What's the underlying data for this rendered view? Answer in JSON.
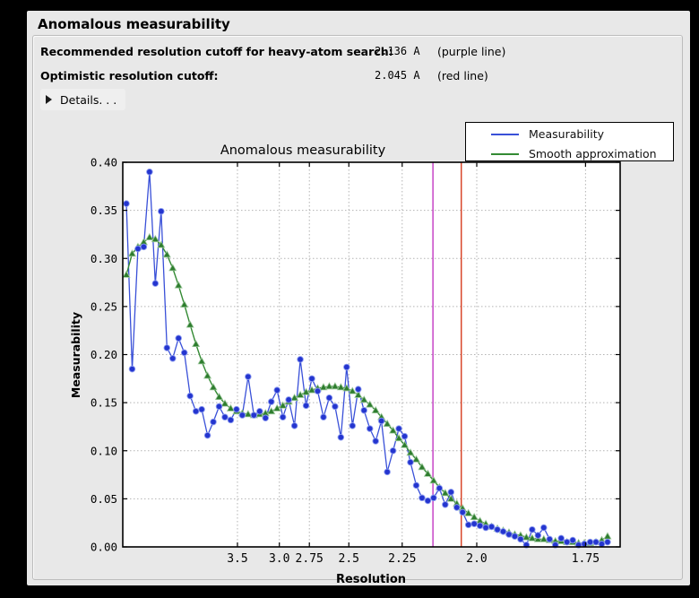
{
  "section": {
    "title": "Anomalous measurability"
  },
  "info_rows": [
    {
      "label": "Recommended resolution cutoff for heavy-atom search:",
      "value": "2.136 A",
      "note": "(purple line)"
    },
    {
      "label": "Optimistic resolution cutoff:",
      "value": "2.045 A",
      "note": "(red line)"
    }
  ],
  "details": {
    "label": "Details. . ."
  },
  "colors": {
    "window_bg": "#e8e8e8",
    "plot_bg": "#ffffff",
    "grid": "#b3b3b3",
    "axis": "#000000",
    "blue_line": "#3950d8",
    "blue_marker": "#2435cf",
    "blue_marker_edge": "#8d9cf0",
    "green_line": "#338a33",
    "green_marker": "#2e7d2e",
    "green_marker_edge": "#9cc79c",
    "purple_vline": "#c238c2",
    "red_vline": "#d63c1e"
  },
  "chart_data": {
    "type": "line",
    "title": "Anomalous measurability",
    "xlabel": "Resolution",
    "ylabel": "Measurability",
    "grid": true,
    "legend_position": "upper-right",
    "ylim": [
      0.0,
      0.4
    ],
    "x_axis_scale": "linear in 1/d^2 (resolution in Angstrom, decreasing d to the right)",
    "x_domain_s2": [
      0.00095,
      0.35088
    ],
    "s2_start": 0.003468,
    "s2_step": 0.004079,
    "x_ticks": [
      {
        "d": 3.5,
        "label": "3.5"
      },
      {
        "d": 3.0,
        "label": "3.0"
      },
      {
        "d": 2.75,
        "label": "2.75"
      },
      {
        "d": 2.5,
        "label": "2.5"
      },
      {
        "d": 2.25,
        "label": "2.25"
      },
      {
        "d": 2.0,
        "label": "2.0"
      },
      {
        "d": 1.75,
        "label": "1.75"
      }
    ],
    "y_ticks": [
      {
        "v": 0.0,
        "label": "0.00"
      },
      {
        "v": 0.05,
        "label": "0.05"
      },
      {
        "v": 0.1,
        "label": "0.10"
      },
      {
        "v": 0.15,
        "label": "0.15"
      },
      {
        "v": 0.2,
        "label": "0.20"
      },
      {
        "v": 0.25,
        "label": "0.25"
      },
      {
        "v": 0.3,
        "label": "0.30"
      },
      {
        "v": 0.35,
        "label": "0.35"
      },
      {
        "v": 0.4,
        "label": "0.40"
      }
    ],
    "vlines": [
      {
        "d": 2.136,
        "name": "purple line",
        "color": "#c238c2"
      },
      {
        "d": 2.045,
        "name": "red line",
        "color": "#d63c1e"
      }
    ],
    "series": [
      {
        "name": "Measurability",
        "marker": "circle",
        "values": [
          0.357,
          0.185,
          0.31,
          0.312,
          0.39,
          0.274,
          0.349,
          0.207,
          0.196,
          0.217,
          0.202,
          0.157,
          0.141,
          0.143,
          0.116,
          0.13,
          0.146,
          0.135,
          0.132,
          0.143,
          0.137,
          0.177,
          0.137,
          0.141,
          0.134,
          0.151,
          0.163,
          0.135,
          0.153,
          0.126,
          0.195,
          0.147,
          0.175,
          0.162,
          0.135,
          0.155,
          0.146,
          0.114,
          0.187,
          0.126,
          0.164,
          0.142,
          0.123,
          0.11,
          0.131,
          0.078,
          0.1,
          0.123,
          0.115,
          0.088,
          0.064,
          0.051,
          0.048,
          0.051,
          0.061,
          0.044,
          0.057,
          0.041,
          0.036,
          0.023,
          0.024,
          0.022,
          0.02,
          0.021,
          0.018,
          0.016,
          0.013,
          0.011,
          0.008,
          0.002,
          0.018,
          0.012,
          0.02,
          0.008,
          0.002,
          0.009,
          0.005,
          0.007,
          0.002,
          0.003,
          0.005,
          0.005,
          0.003,
          0.005
        ]
      },
      {
        "name": "Smooth approximation",
        "marker": "triangle",
        "values": [
          0.283,
          0.305,
          0.312,
          0.317,
          0.322,
          0.32,
          0.314,
          0.304,
          0.29,
          0.272,
          0.252,
          0.231,
          0.211,
          0.193,
          0.178,
          0.166,
          0.156,
          0.149,
          0.144,
          0.141,
          0.139,
          0.138,
          0.137,
          0.138,
          0.139,
          0.141,
          0.144,
          0.147,
          0.151,
          0.155,
          0.158,
          0.161,
          0.163,
          0.165,
          0.166,
          0.167,
          0.167,
          0.166,
          0.165,
          0.162,
          0.158,
          0.153,
          0.148,
          0.142,
          0.135,
          0.128,
          0.121,
          0.113,
          0.106,
          0.098,
          0.091,
          0.083,
          0.076,
          0.069,
          0.062,
          0.056,
          0.05,
          0.045,
          0.04,
          0.035,
          0.031,
          0.027,
          0.024,
          0.021,
          0.019,
          0.017,
          0.015,
          0.013,
          0.012,
          0.01,
          0.009,
          0.008,
          0.008,
          0.007,
          0.006,
          0.006,
          0.005,
          0.005,
          0.004,
          0.004,
          0.004,
          0.005,
          0.007,
          0.011
        ]
      }
    ]
  }
}
